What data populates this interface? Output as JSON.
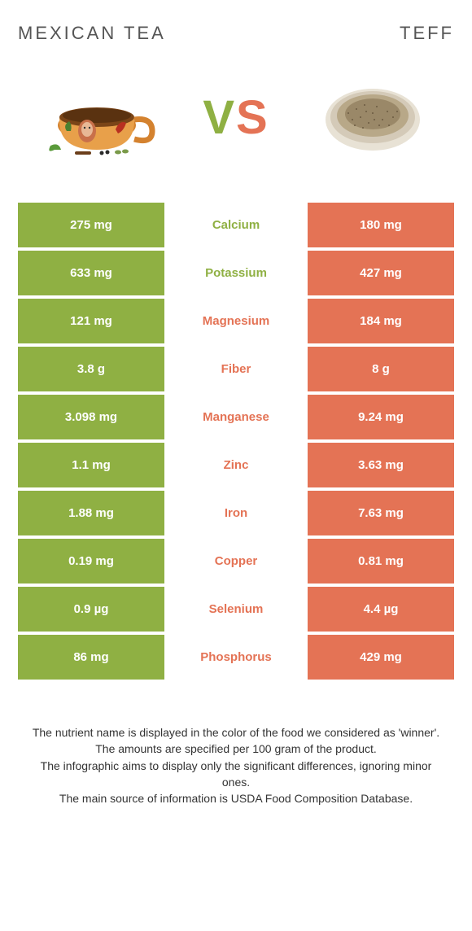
{
  "header": {
    "left_title": "MEXICAN TEA",
    "right_title": "TEFF"
  },
  "vs": {
    "v": "V",
    "s": "S"
  },
  "colors": {
    "left": "#8fb043",
    "right": "#e47355"
  },
  "rows": [
    {
      "left": "275 mg",
      "label": "Calcium",
      "right": "180 mg",
      "winner": "left"
    },
    {
      "left": "633 mg",
      "label": "Potassium",
      "right": "427 mg",
      "winner": "left"
    },
    {
      "left": "121 mg",
      "label": "Magnesium",
      "right": "184 mg",
      "winner": "right"
    },
    {
      "left": "3.8 g",
      "label": "Fiber",
      "right": "8 g",
      "winner": "right"
    },
    {
      "left": "3.098 mg",
      "label": "Manganese",
      "right": "9.24 mg",
      "winner": "right"
    },
    {
      "left": "1.1 mg",
      "label": "Zinc",
      "right": "3.63 mg",
      "winner": "right"
    },
    {
      "left": "1.88 mg",
      "label": "Iron",
      "right": "7.63 mg",
      "winner": "right"
    },
    {
      "left": "0.19 mg",
      "label": "Copper",
      "right": "0.81 mg",
      "winner": "right"
    },
    {
      "left": "0.9 µg",
      "label": "Selenium",
      "right": "4.4 µg",
      "winner": "right"
    },
    {
      "left": "86 mg",
      "label": "Phosphorus",
      "right": "429 mg",
      "winner": "right"
    }
  ],
  "footer": {
    "line1": "The nutrient name is displayed in the color of the food we considered as 'winner'.",
    "line2": "The amounts are specified per 100 gram of the product.",
    "line3": "The infographic aims to display only the significant differences, ignoring minor ones.",
    "line4": "The main source of information is USDA Food Composition Database."
  }
}
